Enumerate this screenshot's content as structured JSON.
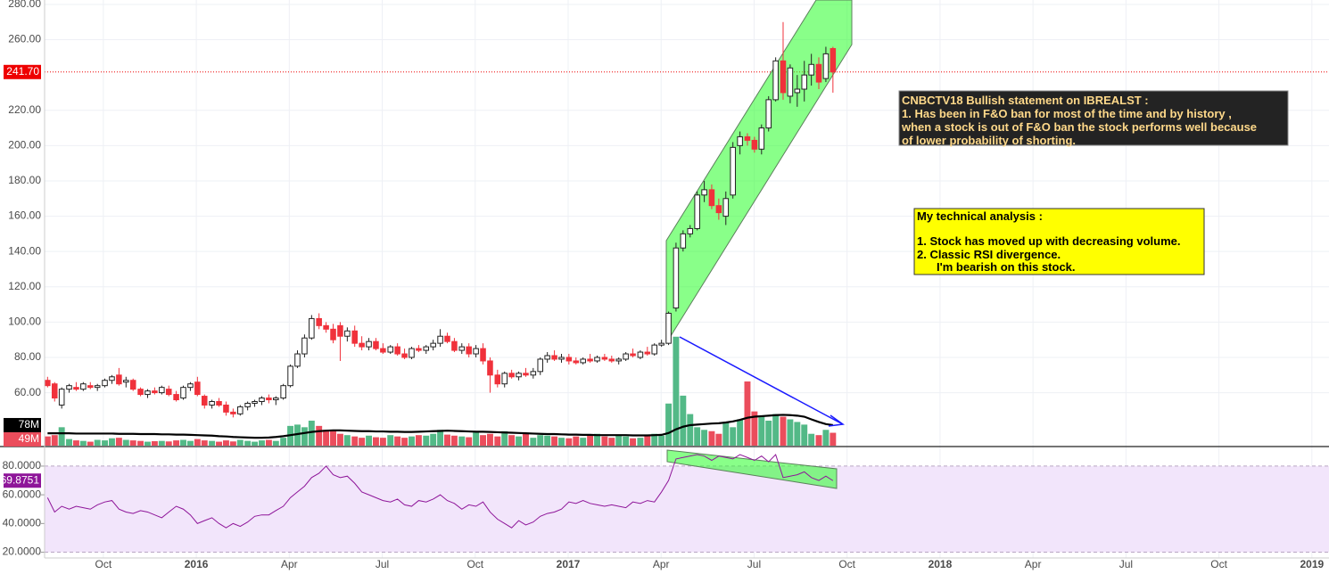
{
  "chart_data": {
    "type": "candlestick",
    "x": [
      2015.6,
      2015.619,
      2015.638,
      2015.658,
      2015.677,
      2015.696,
      2015.715,
      2015.734,
      2015.754,
      2015.773,
      2015.792,
      2015.811,
      2015.83,
      2015.85,
      2015.869,
      2015.888,
      2015.907,
      2015.926,
      2015.946,
      2015.965,
      2015.984,
      2016.003,
      2016.022,
      2016.042,
      2016.061,
      2016.08,
      2016.099,
      2016.118,
      2016.138,
      2016.157,
      2016.176,
      2016.195,
      2016.214,
      2016.234,
      2016.253,
      2016.272,
      2016.291,
      2016.31,
      2016.33,
      2016.349,
      2016.368,
      2016.387,
      2016.406,
      2016.426,
      2016.445,
      2016.464,
      2016.483,
      2016.502,
      2016.522,
      2016.541,
      2016.56,
      2016.579,
      2016.598,
      2016.618,
      2016.637,
      2016.656,
      2016.675,
      2016.694,
      2016.714,
      2016.733,
      2016.752,
      2016.771,
      2016.79,
      2016.81,
      2016.829,
      2016.848,
      2016.867,
      2016.886,
      2016.906,
      2016.925,
      2016.944,
      2016.963,
      2016.982,
      2017.002,
      2017.021,
      2017.04,
      2017.059,
      2017.078,
      2017.098,
      2017.117,
      2017.136,
      2017.155,
      2017.174,
      2017.194,
      2017.213,
      2017.232,
      2017.251,
      2017.27,
      2017.29,
      2017.309,
      2017.328,
      2017.347,
      2017.366,
      2017.386,
      2017.405,
      2017.424,
      2017.443,
      2017.462,
      2017.482,
      2017.501,
      2017.52,
      2017.539,
      2017.558,
      2017.578,
      2017.597,
      2017.616,
      2017.635,
      2017.654,
      2017.674,
      2017.693,
      2017.712
    ],
    "ohlc": [
      [
        67,
        69,
        63,
        64
      ],
      [
        65,
        66,
        55,
        57
      ],
      [
        53,
        63,
        51,
        62
      ],
      [
        62,
        65,
        60,
        64
      ],
      [
        63,
        66,
        61,
        62
      ],
      [
        62,
        66,
        61,
        65
      ],
      [
        64,
        66,
        62,
        63
      ],
      [
        63,
        65,
        61,
        64
      ],
      [
        64,
        68,
        63,
        67
      ],
      [
        67,
        70,
        65,
        69
      ],
      [
        70,
        74,
        64,
        65
      ],
      [
        66,
        69,
        63,
        67
      ],
      [
        67,
        68,
        61,
        62
      ],
      [
        62,
        63,
        58,
        59
      ],
      [
        59,
        62,
        57,
        61
      ],
      [
        61,
        63,
        59,
        60
      ],
      [
        60,
        64,
        59,
        63
      ],
      [
        62,
        64,
        58,
        59
      ],
      [
        59,
        61,
        55,
        56
      ],
      [
        57,
        64,
        56,
        63
      ],
      [
        63,
        66,
        61,
        65
      ],
      [
        66,
        69,
        58,
        59
      ],
      [
        58,
        59,
        51,
        53
      ],
      [
        53,
        56,
        51,
        55
      ],
      [
        55,
        57,
        52,
        53
      ],
      [
        53,
        55,
        47,
        49
      ],
      [
        49,
        51,
        46,
        48
      ],
      [
        48,
        53,
        47,
        52
      ],
      [
        52,
        55,
        50,
        54
      ],
      [
        54,
        56,
        52,
        55
      ],
      [
        55,
        58,
        53,
        57
      ],
      [
        57,
        59,
        54,
        56
      ],
      [
        56,
        58,
        53,
        57
      ],
      [
        57,
        65,
        56,
        64
      ],
      [
        64,
        76,
        63,
        75
      ],
      [
        75,
        84,
        74,
        82
      ],
      [
        82,
        93,
        80,
        91
      ],
      [
        91,
        104,
        90,
        102
      ],
      [
        102,
        105,
        96,
        98
      ],
      [
        98,
        100,
        94,
        96
      ],
      [
        96,
        99,
        88,
        90
      ],
      [
        98,
        100,
        78,
        92
      ],
      [
        92,
        97,
        89,
        95
      ],
      [
        95,
        98,
        86,
        88
      ],
      [
        88,
        92,
        84,
        86
      ],
      [
        86,
        91,
        84,
        89
      ],
      [
        89,
        91,
        84,
        85
      ],
      [
        85,
        88,
        82,
        83
      ],
      [
        83,
        87,
        82,
        86
      ],
      [
        86,
        88,
        81,
        82
      ],
      [
        82,
        85,
        79,
        80
      ],
      [
        80,
        86,
        79,
        85
      ],
      [
        85,
        87,
        83,
        84
      ],
      [
        84,
        87,
        82,
        86
      ],
      [
        86,
        90,
        84,
        88
      ],
      [
        88,
        96,
        86,
        92
      ],
      [
        92,
        94,
        88,
        89
      ],
      [
        89,
        91,
        83,
        84
      ],
      [
        84,
        88,
        82,
        86
      ],
      [
        86,
        88,
        80,
        82
      ],
      [
        82,
        87,
        80,
        85
      ],
      [
        85,
        88,
        76,
        78
      ],
      [
        78,
        80,
        60,
        70
      ],
      [
        70,
        73,
        63,
        65
      ],
      [
        65,
        72,
        63,
        71
      ],
      [
        71,
        73,
        68,
        69
      ],
      [
        69,
        72,
        67,
        71
      ],
      [
        71,
        74,
        69,
        70
      ],
      [
        70,
        74,
        68,
        72
      ],
      [
        72,
        80,
        70,
        79
      ],
      [
        79,
        83,
        77,
        81
      ],
      [
        81,
        84,
        78,
        79
      ],
      [
        79,
        82,
        77,
        80
      ],
      [
        80,
        82,
        76,
        78
      ],
      [
        78,
        80,
        76,
        77
      ],
      [
        77,
        80,
        76,
        79
      ],
      [
        79,
        82,
        77,
        78
      ],
      [
        78,
        81,
        77,
        80
      ],
      [
        80,
        82,
        78,
        79
      ],
      [
        79,
        81,
        77,
        78
      ],
      [
        78,
        80,
        76,
        79
      ],
      [
        79,
        83,
        78,
        82
      ],
      [
        82,
        85,
        80,
        81
      ],
      [
        80,
        84,
        79,
        83
      ],
      [
        83,
        86,
        81,
        82
      ],
      [
        82,
        88,
        81,
        87
      ],
      [
        87,
        90,
        86,
        88
      ],
      [
        88,
        106,
        87,
        105
      ],
      [
        108,
        145,
        106,
        142
      ],
      [
        142,
        152,
        140,
        150
      ],
      [
        150,
        155,
        148,
        153
      ],
      [
        153,
        174,
        152,
        172
      ],
      [
        172,
        180,
        168,
        175
      ],
      [
        175,
        178,
        164,
        166
      ],
      [
        166,
        170,
        158,
        162
      ],
      [
        160,
        174,
        155,
        170
      ],
      [
        172,
        202,
        170,
        199
      ],
      [
        200,
        208,
        195,
        205
      ],
      [
        205,
        207,
        200,
        203
      ],
      [
        203,
        205,
        196,
        198
      ],
      [
        198,
        212,
        195,
        210
      ],
      [
        210,
        228,
        208,
        226
      ],
      [
        226,
        250,
        225,
        248
      ],
      [
        248,
        270,
        226,
        230
      ],
      [
        228,
        246,
        224,
        244
      ],
      [
        230,
        240,
        222,
        232
      ],
      [
        232,
        248,
        225,
        240
      ],
      [
        240,
        252,
        234,
        246
      ],
      [
        246,
        250,
        232,
        236
      ],
      [
        238,
        256,
        236,
        252
      ],
      [
        255,
        256,
        230,
        241.7
      ]
    ],
    "volume": [
      35,
      40,
      70,
      25,
      20,
      18,
      15,
      22,
      20,
      28,
      30,
      22,
      20,
      18,
      15,
      17,
      18,
      16,
      20,
      22,
      18,
      25,
      20,
      18,
      15,
      20,
      16,
      22,
      18,
      15,
      20,
      22,
      18,
      30,
      75,
      80,
      70,
      95,
      75,
      60,
      55,
      45,
      40,
      35,
      30,
      38,
      32,
      30,
      40,
      35,
      30,
      35,
      40,
      38,
      45,
      60,
      42,
      38,
      35,
      32,
      50,
      40,
      45,
      35,
      55,
      40,
      35,
      45,
      30,
      40,
      38,
      35,
      30,
      28,
      35,
      30,
      40,
      45,
      35,
      30,
      38,
      35,
      28,
      30,
      40,
      45,
      38,
      160,
      414,
      190,
      120,
      70,
      60,
      55,
      45,
      90,
      70,
      100,
      244,
      130,
      110,
      95,
      120,
      110,
      100,
      90,
      80,
      45,
      40,
      60,
      49
    ],
    "volume_ma": [
      47,
      47,
      47,
      47,
      46,
      46,
      46,
      46,
      46,
      46,
      45,
      45,
      45,
      44,
      44,
      44,
      43,
      43,
      42,
      42,
      41,
      40,
      39,
      38,
      36,
      35,
      33,
      32,
      31,
      30,
      30,
      31,
      33,
      36,
      40,
      44,
      48,
      52,
      55,
      57,
      58,
      58,
      57,
      56,
      55,
      55,
      54,
      54,
      53,
      53,
      52,
      52,
      53,
      54,
      55,
      56,
      57,
      56,
      55,
      54,
      53,
      53,
      52,
      51,
      50,
      49,
      48,
      47,
      46,
      45,
      44,
      44,
      43,
      42,
      42,
      41,
      41,
      40,
      40,
      40,
      40,
      40,
      39,
      39,
      39,
      40,
      41,
      48,
      62,
      72,
      78,
      80,
      82,
      84,
      85,
      88,
      92,
      98,
      106,
      110,
      112,
      114,
      116,
      117,
      116,
      114,
      110,
      100,
      90,
      82,
      78
    ],
    "rsi": [
      58,
      48,
      52,
      50,
      52,
      51,
      50,
      53,
      55,
      56,
      50,
      48,
      47,
      49,
      48,
      46,
      44,
      48,
      52,
      50,
      46,
      40,
      42,
      44,
      40,
      37,
      40,
      38,
      41,
      45,
      46,
      46,
      49,
      52,
      58,
      62,
      66,
      72,
      75,
      80,
      74,
      72,
      73,
      68,
      62,
      60,
      58,
      56,
      55,
      57,
      53,
      52,
      56,
      55,
      57,
      60,
      56,
      54,
      50,
      53,
      52,
      55,
      48,
      43,
      40,
      37,
      42,
      39,
      41,
      45,
      47,
      48,
      50,
      55,
      54,
      56,
      54,
      53,
      52,
      53,
      52,
      51,
      55,
      54,
      56,
      55,
      62,
      70,
      85,
      86,
      87,
      88,
      87,
      84,
      87,
      86,
      85,
      88,
      86,
      84,
      87,
      83,
      88,
      72,
      73,
      74,
      76,
      72,
      70,
      73,
      69.8751
    ],
    "xlim": [
      2015.592,
      2019.046
    ],
    "xticks": [
      {
        "value": 2015.75,
        "label": "Oct"
      },
      2016,
      {
        "value": 2016.25,
        "label": "Apr"
      },
      {
        "value": 2016.5,
        "label": "Jul"
      },
      {
        "value": 2016.75,
        "label": "Oct"
      },
      2017,
      {
        "value": 2017.25,
        "label": "Apr"
      },
      {
        "value": 2017.5,
        "label": "Jul"
      },
      {
        "value": 2017.75,
        "label": "Oct"
      },
      2018,
      {
        "value": 2018.25,
        "label": "Apr"
      },
      {
        "value": 2018.5,
        "label": "Jul"
      },
      {
        "value": 2018.75,
        "label": "Oct"
      },
      2019
    ],
    "ylim": [
      30,
      282.5
    ],
    "yticks": [
      {
        "value": 280,
        "label": "280.00"
      },
      {
        "value": 260,
        "label": "260.00"
      },
      {
        "value": 220,
        "label": "220.00"
      },
      {
        "value": 200,
        "label": "200.00"
      },
      {
        "value": 180,
        "label": "180.00"
      },
      {
        "value": 160,
        "label": "160.00"
      },
      {
        "value": 140,
        "label": "140.00"
      },
      {
        "value": 120,
        "label": "120.00"
      },
      {
        "value": 100,
        "label": "100.00"
      },
      {
        "value": 80,
        "label": "80.00"
      },
      {
        "value": 60,
        "label": "60.00"
      }
    ],
    "volume_ylim": [
      0,
      420
    ],
    "rsi_ylim": [
      16,
      93
    ],
    "rsi_yticks": [
      {
        "value": 80,
        "label": "80.0000"
      },
      {
        "value": 60,
        "label": "60.0000"
      },
      {
        "value": 40,
        "label": "40.0000"
      },
      {
        "value": 20,
        "label": "20.0000"
      }
    ],
    "rsi_band": [
      20,
      80
    ],
    "grid": true,
    "up_color": "#ffffff",
    "down_color": "#f0313b",
    "volume_up_color": "#53b987",
    "volume_down_color": "#eb4d5c",
    "volume_ma_color": "#000000",
    "rsi_color": "#8e1599",
    "price_line": {
      "value": 241.7,
      "label": "241.70"
    },
    "volume_ma_label": {
      "value": 78,
      "label": "78M"
    },
    "volume_label": {
      "value": 49,
      "label": "49M"
    },
    "rsi_label": {
      "value": 69.8751,
      "label": "69.8751"
    },
    "annotations": [
      {
        "lines": [
          "CNBCTV18 Bullish statement on IBREALST :",
          "1. Has been in F&O ban for most of the time and by history ,",
          "when a stock is out of F&O ban the stock performs well because",
          "of lower probability of shorting."
        ]
      },
      {
        "lines": [
          "My technical analysis :",
          "1. Stock has moved up with decreasing volume.",
          "2. Classic RSI divergence.",
          "I'm bearish on this stock."
        ]
      }
    ]
  }
}
